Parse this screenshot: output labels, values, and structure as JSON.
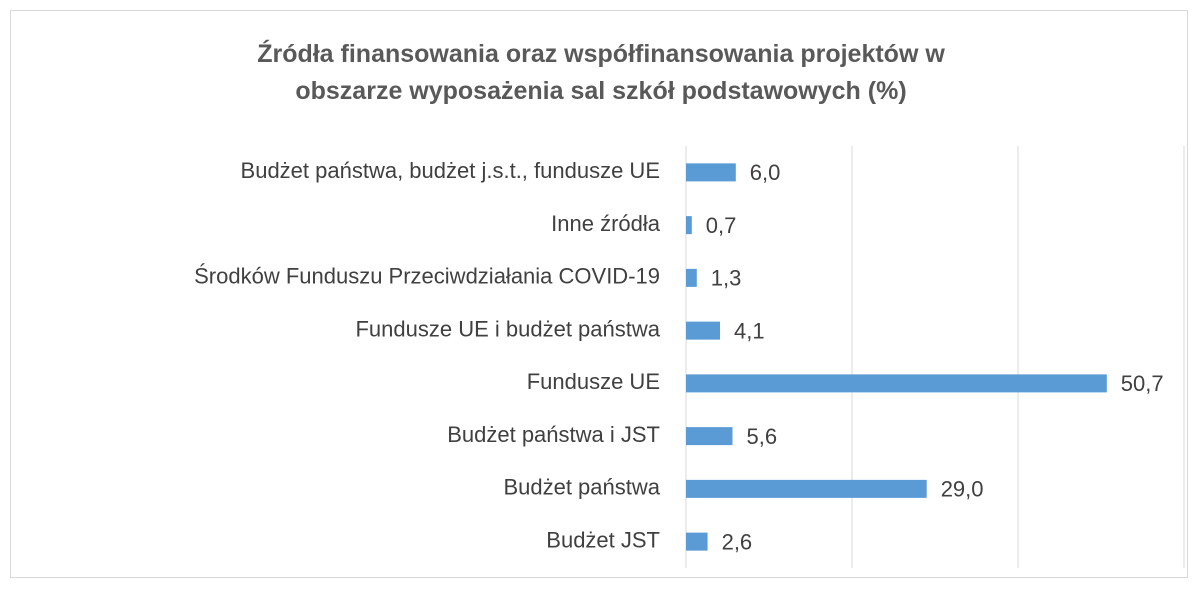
{
  "chart_data": {
    "type": "bar",
    "orientation": "horizontal",
    "title": "Źródła finansowania oraz współfinansowania projektów w obszarze wyposażenia sal szkół podstawowych (%)",
    "categories": [
      "Budżet państwa, budżet j.s.t., fundusze UE",
      "Inne źródła",
      "Środków Funduszu Przeciwdziałania COVID-19",
      "Fundusze UE i budżet państwa",
      "Fundusze UE",
      "Budżet państwa i JST",
      "Budżet państwa",
      "Budżet JST"
    ],
    "values": [
      6.0,
      0.7,
      1.3,
      4.1,
      50.7,
      5.6,
      29.0,
      2.6
    ],
    "value_labels": [
      "6,0",
      "0,7",
      "1,3",
      "4,1",
      "50,7",
      "5,6",
      "29,0",
      "2,6"
    ],
    "color": "#5b9bd5",
    "xlim": [
      0,
      60
    ],
    "xticks": [
      0,
      20,
      40,
      60
    ],
    "grid": true
  }
}
